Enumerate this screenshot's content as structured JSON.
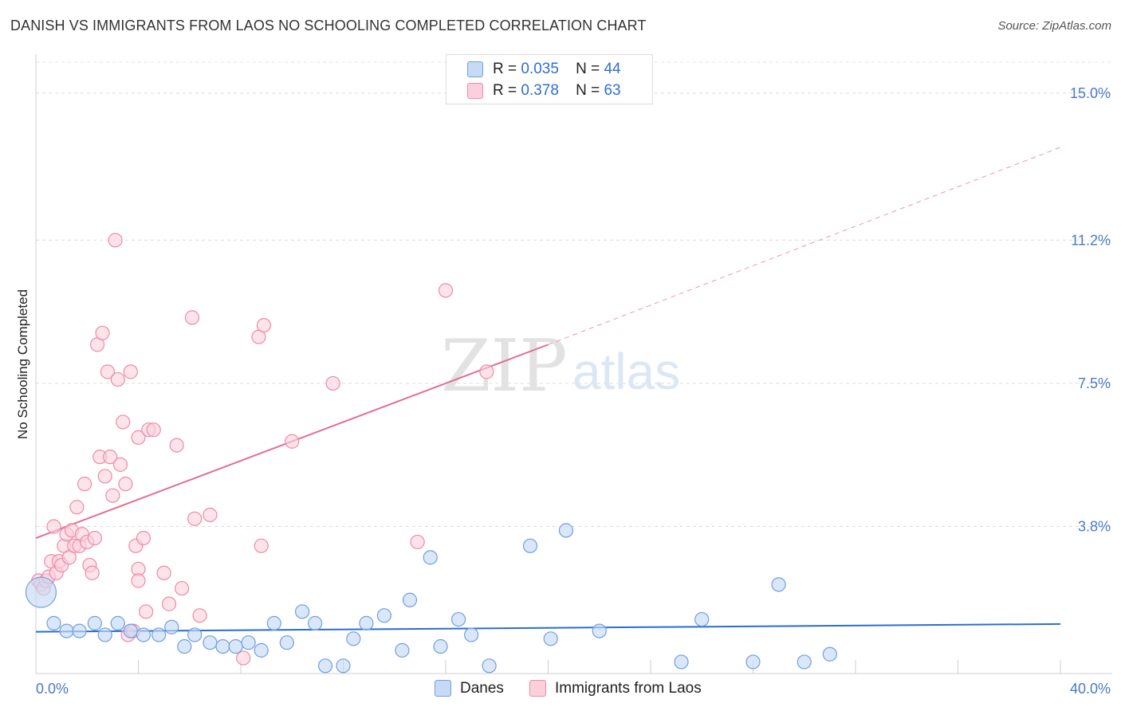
{
  "title": "DANISH VS IMMIGRANTS FROM LAOS NO SCHOOLING COMPLETED CORRELATION CHART",
  "source": "Source: ZipAtlas.com",
  "watermark": {
    "zip": "ZIP",
    "atlas": "atlas"
  },
  "legend": {
    "danes": {
      "r_label": "R =",
      "r_value": "0.035",
      "n_label": "N =",
      "n_value": "44"
    },
    "laos": {
      "r_label": "R =",
      "r_value": "0.378",
      "n_label": "N =",
      "n_value": "63"
    }
  },
  "colors": {
    "danes_fill": "#c6daf6",
    "danes_stroke": "#6f9fe0",
    "danes_line": "#2a6dd2",
    "laos_fill": "#fbd0dc",
    "laos_stroke": "#ee8aa8",
    "laos_line": "#e46d91",
    "tick_text": "#4a79c9"
  },
  "chart_data": {
    "type": "scatter",
    "title": "DANISH VS IMMIGRANTS FROM LAOS NO SCHOOLING COMPLETED CORRELATION CHART",
    "xlabel": "",
    "ylabel": "No Schooling Completed",
    "xlim": [
      0,
      40
    ],
    "ylim": [
      0,
      15.8
    ],
    "x_tick_labels": [
      "0.0%",
      "40.0%"
    ],
    "y_ticks": [
      {
        "value": 3.8,
        "label": "3.8%"
      },
      {
        "value": 7.5,
        "label": "7.5%"
      },
      {
        "value": 11.2,
        "label": "11.2%"
      },
      {
        "value": 15.0,
        "label": "15.0%"
      }
    ],
    "legend_position": "top-center",
    "series": [
      {
        "name": "Danes",
        "trend": {
          "x": [
            0,
            40
          ],
          "y": [
            1.08,
            1.28
          ],
          "style": "solid"
        },
        "points": [
          {
            "x": 0.2,
            "y": 2.1,
            "size": "large"
          },
          {
            "x": 0.7,
            "y": 1.3
          },
          {
            "x": 1.2,
            "y": 1.1
          },
          {
            "x": 1.7,
            "y": 1.1
          },
          {
            "x": 2.3,
            "y": 1.3
          },
          {
            "x": 2.7,
            "y": 1.0
          },
          {
            "x": 3.2,
            "y": 1.3
          },
          {
            "x": 3.7,
            "y": 1.1
          },
          {
            "x": 4.2,
            "y": 1.0
          },
          {
            "x": 4.8,
            "y": 1.0
          },
          {
            "x": 5.3,
            "y": 1.2
          },
          {
            "x": 5.8,
            "y": 0.7
          },
          {
            "x": 6.2,
            "y": 1.0
          },
          {
            "x": 6.8,
            "y": 0.8
          },
          {
            "x": 7.3,
            "y": 0.7
          },
          {
            "x": 7.8,
            "y": 0.7
          },
          {
            "x": 8.3,
            "y": 0.8
          },
          {
            "x": 8.8,
            "y": 0.6
          },
          {
            "x": 9.3,
            "y": 1.3
          },
          {
            "x": 9.8,
            "y": 0.8
          },
          {
            "x": 10.4,
            "y": 1.6
          },
          {
            "x": 10.9,
            "y": 1.3
          },
          {
            "x": 11.3,
            "y": 0.2
          },
          {
            "x": 12.0,
            "y": 0.2
          },
          {
            "x": 12.4,
            "y": 0.9
          },
          {
            "x": 12.9,
            "y": 1.3
          },
          {
            "x": 13.6,
            "y": 1.5
          },
          {
            "x": 14.3,
            "y": 0.6
          },
          {
            "x": 14.6,
            "y": 1.9
          },
          {
            "x": 15.4,
            "y": 3.0
          },
          {
            "x": 15.8,
            "y": 0.7
          },
          {
            "x": 16.5,
            "y": 1.4
          },
          {
            "x": 17.0,
            "y": 1.0
          },
          {
            "x": 17.7,
            "y": 0.2
          },
          {
            "x": 19.3,
            "y": 3.3
          },
          {
            "x": 20.1,
            "y": 0.9
          },
          {
            "x": 20.7,
            "y": 3.7
          },
          {
            "x": 22.0,
            "y": 1.1
          },
          {
            "x": 25.2,
            "y": 0.3
          },
          {
            "x": 26.0,
            "y": 1.4
          },
          {
            "x": 28.0,
            "y": 0.3
          },
          {
            "x": 29.0,
            "y": 2.3
          },
          {
            "x": 30.0,
            "y": 0.3
          },
          {
            "x": 31.0,
            "y": 0.5
          }
        ]
      },
      {
        "name": "Immigrants from Laos",
        "trend": {
          "x": [
            0,
            20
          ],
          "y": [
            3.5,
            8.5
          ],
          "style": "solid",
          "extension": {
            "x": [
              20,
              40
            ],
            "y": [
              8.5,
              13.6
            ],
            "style": "dashed"
          }
        },
        "points": [
          {
            "x": 0.1,
            "y": 2.4
          },
          {
            "x": 0.2,
            "y": 2.3
          },
          {
            "x": 0.3,
            "y": 2.2
          },
          {
            "x": 0.4,
            "y": 2.4
          },
          {
            "x": 0.5,
            "y": 2.5
          },
          {
            "x": 0.6,
            "y": 2.9
          },
          {
            "x": 0.7,
            "y": 3.8
          },
          {
            "x": 0.8,
            "y": 2.6
          },
          {
            "x": 0.9,
            "y": 2.9
          },
          {
            "x": 1.0,
            "y": 2.8
          },
          {
            "x": 1.1,
            "y": 3.3
          },
          {
            "x": 1.2,
            "y": 3.6
          },
          {
            "x": 1.3,
            "y": 3.0
          },
          {
            "x": 1.4,
            "y": 3.7
          },
          {
            "x": 1.5,
            "y": 3.3
          },
          {
            "x": 1.6,
            "y": 4.3
          },
          {
            "x": 1.7,
            "y": 3.3
          },
          {
            "x": 1.8,
            "y": 3.6
          },
          {
            "x": 1.9,
            "y": 4.9
          },
          {
            "x": 2.0,
            "y": 3.4
          },
          {
            "x": 2.1,
            "y": 2.8
          },
          {
            "x": 2.2,
            "y": 2.6
          },
          {
            "x": 2.3,
            "y": 3.5
          },
          {
            "x": 2.4,
            "y": 8.5
          },
          {
            "x": 2.5,
            "y": 5.6
          },
          {
            "x": 2.6,
            "y": 8.8
          },
          {
            "x": 2.7,
            "y": 5.1
          },
          {
            "x": 2.8,
            "y": 7.8
          },
          {
            "x": 2.9,
            "y": 5.6
          },
          {
            "x": 3.0,
            "y": 4.6
          },
          {
            "x": 3.1,
            "y": 11.2
          },
          {
            "x": 3.2,
            "y": 7.6
          },
          {
            "x": 3.3,
            "y": 5.4
          },
          {
            "x": 3.4,
            "y": 6.5
          },
          {
            "x": 3.5,
            "y": 4.9
          },
          {
            "x": 3.6,
            "y": 1.0
          },
          {
            "x": 3.7,
            "y": 7.8
          },
          {
            "x": 3.8,
            "y": 1.1
          },
          {
            "x": 3.9,
            "y": 3.3
          },
          {
            "x": 4.0,
            "y": 2.7
          },
          {
            "x": 4.0,
            "y": 2.4
          },
          {
            "x": 4.0,
            "y": 6.1
          },
          {
            "x": 4.2,
            "y": 3.5
          },
          {
            "x": 4.3,
            "y": 1.6
          },
          {
            "x": 4.4,
            "y": 6.3
          },
          {
            "x": 4.6,
            "y": 6.3
          },
          {
            "x": 5.0,
            "y": 2.6
          },
          {
            "x": 5.2,
            "y": 1.8
          },
          {
            "x": 5.5,
            "y": 5.9
          },
          {
            "x": 5.7,
            "y": 2.2
          },
          {
            "x": 6.1,
            "y": 9.2
          },
          {
            "x": 6.2,
            "y": 4.0
          },
          {
            "x": 6.4,
            "y": 1.5
          },
          {
            "x": 6.8,
            "y": 4.1
          },
          {
            "x": 8.1,
            "y": 0.4
          },
          {
            "x": 8.7,
            "y": 8.7
          },
          {
            "x": 8.8,
            "y": 3.3
          },
          {
            "x": 8.9,
            "y": 9.0
          },
          {
            "x": 10.0,
            "y": 6.0
          },
          {
            "x": 11.6,
            "y": 7.5
          },
          {
            "x": 14.9,
            "y": 3.4
          },
          {
            "x": 16.0,
            "y": 9.9
          },
          {
            "x": 17.6,
            "y": 7.8
          }
        ]
      }
    ]
  },
  "bottom_legend": {
    "danes": "Danes",
    "laos": "Immigrants from Laos"
  }
}
